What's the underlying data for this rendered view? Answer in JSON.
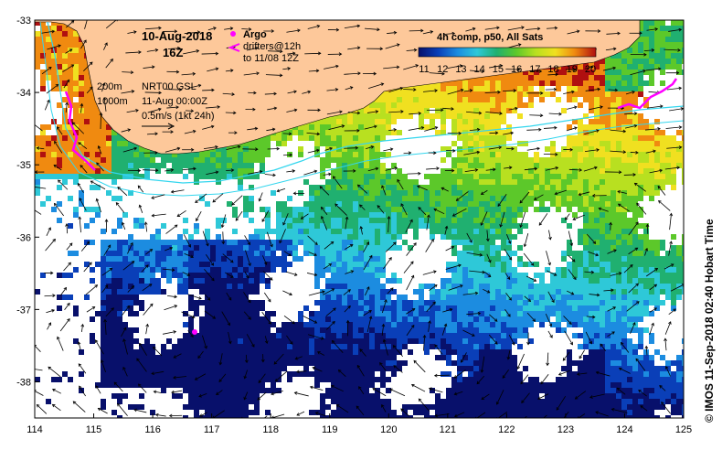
{
  "header": {
    "date": "10-Aug-2018",
    "hour": "16Z",
    "argo_label": "Argo",
    "drifters_label": "drifters@12h",
    "drifters_range": "to 11/08 12Z",
    "argo_color": "#ff00ff"
  },
  "annotations": {
    "depth1": "200m",
    "depth2": "1000m",
    "product": "NRT00 GSL",
    "time": "11-Aug 00:00Z",
    "scale": "0.5m/s (1kt 24h)"
  },
  "colorbar": {
    "title": "4h comp, p50, All Sats",
    "ticks": [
      "11",
      "12",
      "13",
      "14",
      "15",
      "16",
      "17",
      "18",
      "19",
      "20"
    ]
  },
  "axes": {
    "x_ticks": [
      "114",
      "115",
      "116",
      "117",
      "118",
      "119",
      "120",
      "121",
      "122",
      "123",
      "124",
      "125"
    ],
    "y_ticks": [
      "-33",
      "-34",
      "-35",
      "-36",
      "-37",
      "-38"
    ],
    "xlim": [
      114,
      125
    ],
    "ylim": [
      -38.5,
      -33
    ]
  },
  "credit": "© IMOS 11-Sep-2018 02:40 Hobart Time",
  "colors": {
    "land": "#fdc89a",
    "isobath": "#33d6ee",
    "arrow": "#000000"
  }
}
